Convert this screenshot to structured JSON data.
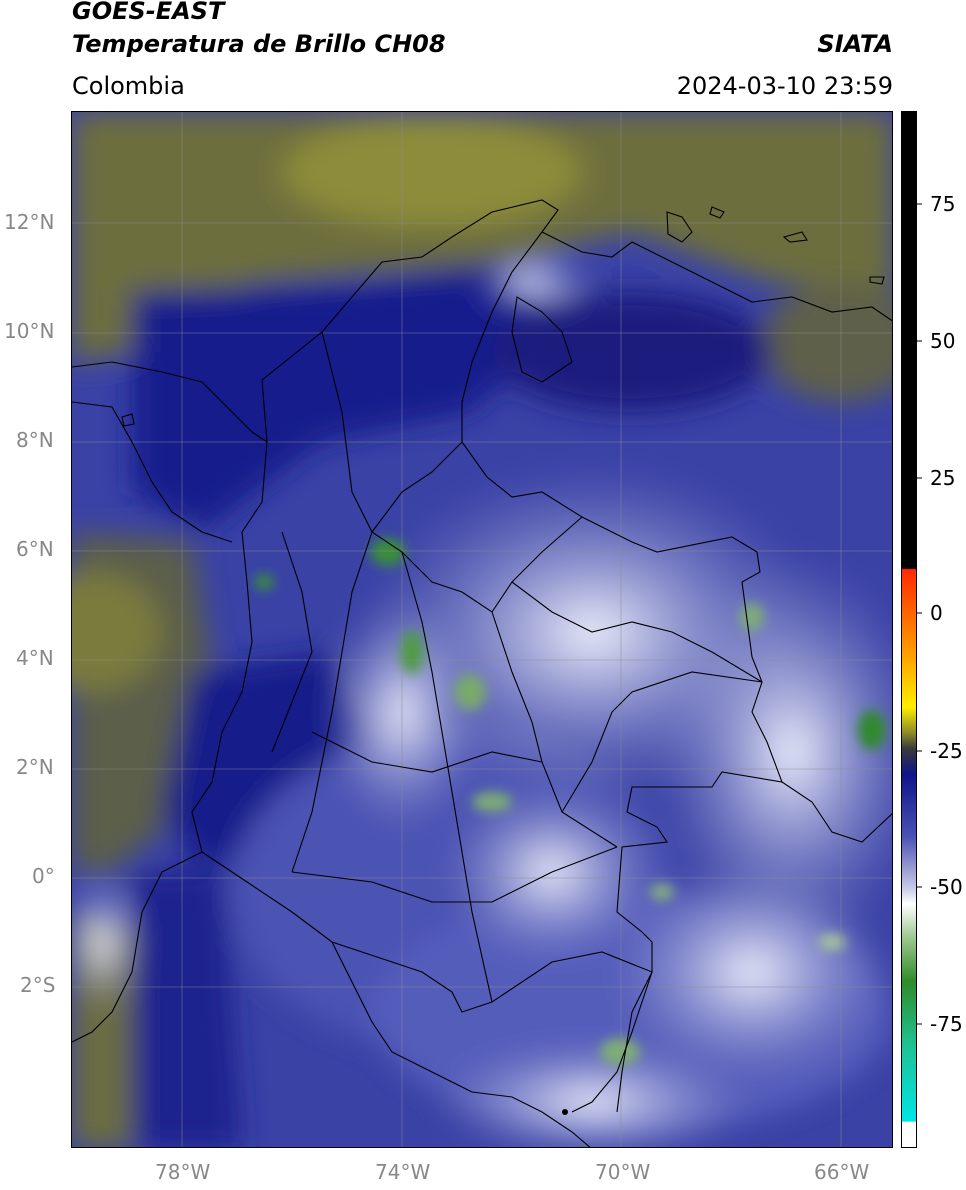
{
  "header": {
    "satellite": "GOES-EAST",
    "product": "Temperatura de Brillo CH08",
    "agency": "SIATA",
    "region": "Colombia",
    "datetime": "2024-03-10 23:59"
  },
  "axes": {
    "lat_labels": [
      "12°N",
      "10°N",
      "8°N",
      "6°N",
      "4°N",
      "2°N",
      "0°",
      "2°S"
    ],
    "lon_labels": [
      "78°W",
      "74°W",
      "70°W",
      "66°W"
    ]
  },
  "colorbar": {
    "tick_labels": [
      "75",
      "50",
      "25",
      "0",
      "-25",
      "-50",
      "-75"
    ],
    "colors": {
      "black": "#000000",
      "red": "#ff2a00",
      "orange": "#ff9900",
      "yellow": "#ffee00",
      "olive": "#7a7a2a",
      "navy": "#10148a",
      "blue": "#4a52b4",
      "lavender": "#c8cbe6",
      "white": "#ffffff",
      "green": "#2f8c2a",
      "teal": "#20c090",
      "cyan": "#00e6e6"
    }
  },
  "icons": {
    "grid": "graticule-lines",
    "borders": "country-department-borders"
  }
}
